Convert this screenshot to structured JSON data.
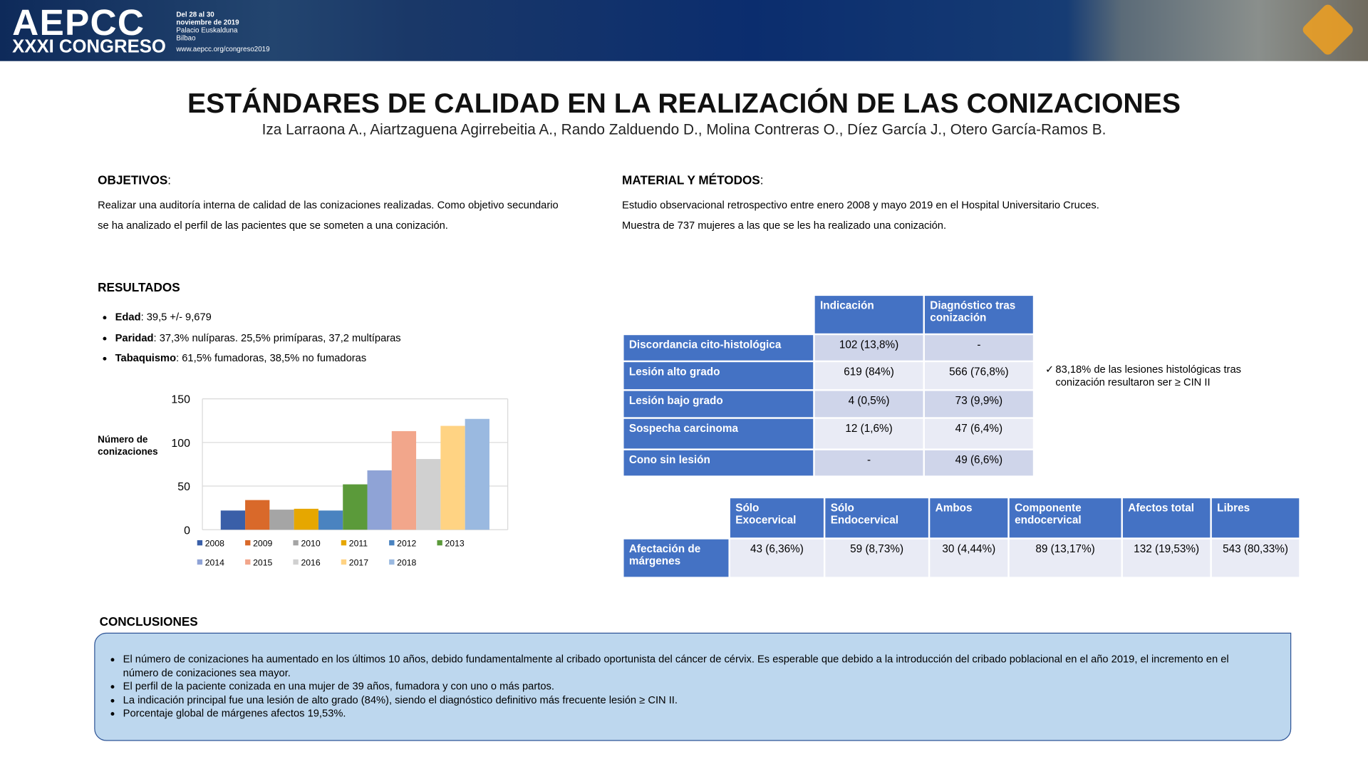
{
  "header": {
    "logo": "AEPCC",
    "congress": "XXXI CONGRESO",
    "dates": "Del 28 al 30",
    "month": "noviembre de 2019",
    "venue": "Palacio Euskalduna",
    "city": "Bilbao",
    "url": "www.aepcc.org/congreso2019"
  },
  "title": "ESTÁNDARES DE CALIDAD EN LA REALIZACIÓN DE LAS CONIZACIONES",
  "authors": "Iza Larraona A., Aiartzaguena Agirrebeitia A., Rando Zalduendo D., Molina Contreras O., Díez García J., Otero García-Ramos B.",
  "objetivos": {
    "heading": "OBJETIVOS",
    "text": "Realizar una auditoría interna de calidad de las conizaciones realizadas. Como objetivo secundario se ha analizado el perfil de las pacientes que se someten a una conización."
  },
  "metodos": {
    "heading": "MATERIAL Y MÉTODOS",
    "text": "Estudio observacional retrospectivo entre enero 2008 y mayo 2019 en el Hospital Universitario Cruces. Muestra de 737 mujeres a las que se les ha realizado una conización."
  },
  "resultados": {
    "heading": "RESULTADOS",
    "items": [
      {
        "label": "Edad",
        "text": ": 39,5 +/- 9,679"
      },
      {
        "label": "Paridad",
        "text": ": 37,3% nulíparas. 25,5% primíparas, 37,2 multíparas"
      },
      {
        "label": "Tabaquismo",
        "text": ": 61,5% fumadoras, 38,5% no fumadoras"
      }
    ]
  },
  "chart_data": {
    "type": "bar",
    "y_label": "Número de conizaciones",
    "categories": [
      "2008",
      "2009",
      "2010",
      "2011",
      "2012",
      "2013",
      "2014",
      "2015",
      "2016",
      "2017",
      "2018"
    ],
    "values": [
      22,
      34,
      23,
      24,
      22,
      52,
      68,
      113,
      81,
      119,
      127
    ],
    "colors": [
      "#3a5fa8",
      "#d9692a",
      "#a5a5a5",
      "#e6a700",
      "#4a83c0",
      "#5b9a3a",
      "#8fa3d6",
      "#f2a68b",
      "#d0d0d0",
      "#ffd383",
      "#9ab9e0"
    ],
    "ylim": [
      0,
      150
    ],
    "yticks": [
      0,
      50,
      100,
      150
    ],
    "grid": true
  },
  "table_indicacion": {
    "columns": [
      "Indicación",
      "Diagnóstico tras conización"
    ],
    "rows": [
      {
        "label": "Discordancia cito-histológica",
        "cells": [
          "102 (13,8%)",
          "-"
        ]
      },
      {
        "label": "Lesión alto grado",
        "cells": [
          "619 (84%)",
          "566 (76,8%)"
        ]
      },
      {
        "label": "Lesión bajo grado",
        "cells": [
          "4 (0,5%)",
          "73 (9,9%)"
        ]
      },
      {
        "label": "Sospecha carcinoma",
        "cells": [
          "12 (1,6%)",
          "47 (6,4%)"
        ]
      },
      {
        "label": "Cono sin lesión",
        "cells": [
          "-",
          "49 (6,6%)"
        ]
      }
    ]
  },
  "note": "83,18% de las lesiones histológicas tras conización  resultaron ser ≥ CIN II",
  "table_margenes": {
    "columns": [
      "Sólo Exocervical",
      "Sólo Endocervical",
      "Ambos",
      "Componente endocervical",
      "Afectos total",
      "Libres"
    ],
    "rows": [
      {
        "label": "Afectación de márgenes",
        "cells": [
          "43 (6,36%)",
          "59 (8,73%)",
          "30 (4,44%)",
          "89 (13,17%)",
          "132 (19,53%)",
          "543 (80,33%)"
        ]
      }
    ]
  },
  "conclusiones": {
    "heading": "CONCLUSIONES",
    "items": [
      "El número de conizaciones ha aumentado en los últimos 10 años, debido fundamentalmente al cribado oportunista del cáncer de cérvix. Es esperable que debido a la introducción del cribado poblacional en el año 2019, el incremento en el número de conizaciones sea mayor.",
      "El perfil de la paciente conizada en una mujer de 39 años, fumadora y con uno o más partos.",
      "La indicación principal fue una lesión de alto grado (84%), siendo el diagnóstico definitivo más frecuente  lesión ≥ CIN II.",
      "Porcentaje global de márgenes afectos 19,53%."
    ]
  }
}
